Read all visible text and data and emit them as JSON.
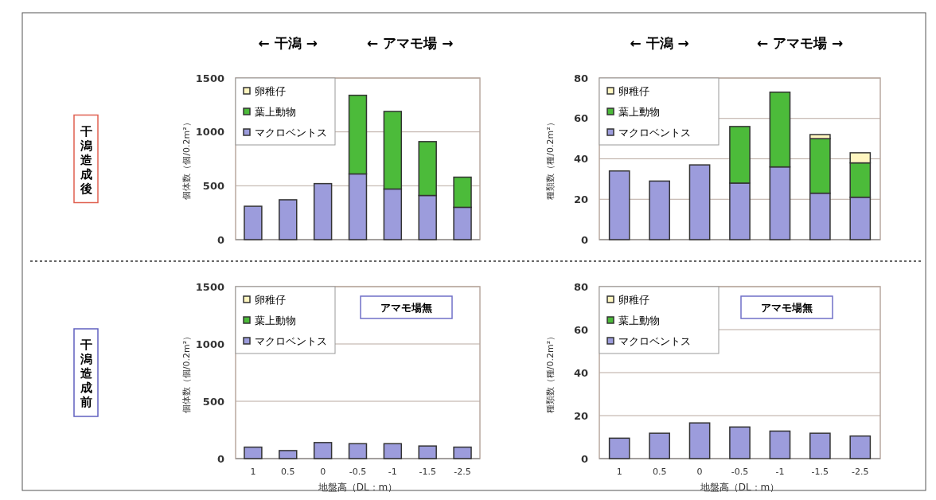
{
  "chart_data": [
    {
      "type": "bar",
      "stacked": true,
      "ylabel": "個体数（個/0.2m²）",
      "categories": [
        "1",
        "0.5",
        "0",
        "-0.5",
        "-1",
        "-1.5",
        "-2.5"
      ],
      "ylim": [
        0,
        1500
      ],
      "yticks": [
        0,
        500,
        1000,
        1500
      ],
      "grid": "y",
      "legend": "top left",
      "tick_labels": "y",
      "annotations": [
        "← 干潟 →",
        "← アマモ場 →",
        "干潟造成後"
      ],
      "series": [
        {
          "name": "マクロベントス",
          "color": "#9c9cdc",
          "values": [
            310,
            370,
            520,
            610,
            470,
            410,
            300
          ]
        },
        {
          "name": "葉上動物",
          "color": "#4cbb3a",
          "values": [
            0,
            0,
            0,
            730,
            720,
            500,
            280
          ]
        },
        {
          "name": "卵稚仔",
          "color": "#fff6c0",
          "values": [
            0,
            0,
            0,
            0,
            0,
            0,
            0
          ]
        }
      ]
    },
    {
      "type": "bar",
      "stacked": true,
      "ylabel": "種類数（種/0.2m²）",
      "categories": [
        "1",
        "0.5",
        "0",
        "-0.5",
        "-1",
        "-1.5",
        "-2.5"
      ],
      "ylim": [
        0,
        80
      ],
      "yticks": [
        0,
        20,
        40,
        60,
        80
      ],
      "grid": "y",
      "legend": "top left",
      "tick_labels": "y",
      "annotations": [
        "← 干潟 →",
        "← アマモ場 →"
      ],
      "series": [
        {
          "name": "マクロベントス",
          "color": "#9c9cdc",
          "values": [
            34,
            29,
            37,
            28,
            36,
            23,
            21
          ]
        },
        {
          "name": "葉上動物",
          "color": "#4cbb3a",
          "values": [
            0,
            0,
            0,
            28,
            37,
            27,
            17
          ]
        },
        {
          "name": "卵稚仔",
          "color": "#fff6c0",
          "values": [
            0,
            0,
            0,
            0,
            0,
            2,
            5
          ]
        }
      ]
    },
    {
      "type": "bar",
      "stacked": true,
      "ylabel": "個体数（個/0.2m²）",
      "xlabel": "地盤高（DL：m）",
      "categories": [
        "1",
        "0.5",
        "0",
        "-0.5",
        "-1",
        "-1.5",
        "-2.5"
      ],
      "ylim": [
        0,
        1500
      ],
      "yticks": [
        0,
        500,
        1000,
        1500
      ],
      "grid": "y",
      "legend": "top left",
      "annotations": [
        "アマモ場無",
        "干潟造成前"
      ],
      "series": [
        {
          "name": "マクロベントス",
          "color": "#9c9cdc",
          "values": [
            100,
            70,
            140,
            130,
            130,
            110,
            100
          ]
        },
        {
          "name": "葉上動物",
          "color": "#4cbb3a",
          "values": [
            0,
            0,
            0,
            0,
            0,
            0,
            0
          ]
        },
        {
          "name": "卵稚仔",
          "color": "#fff6c0",
          "values": [
            0,
            0,
            0,
            0,
            0,
            0,
            0
          ]
        }
      ]
    },
    {
      "type": "bar",
      "stacked": true,
      "ylabel": "種類数（種/0.2m²）",
      "xlabel": "地盤高（DL：m）",
      "categories": [
        "1",
        "0.5",
        "0",
        "-0.5",
        "-1",
        "-1.5",
        "-2.5"
      ],
      "ylim": [
        0,
        80
      ],
      "yticks": [
        0,
        20,
        40,
        60,
        80
      ],
      "grid": "y",
      "legend": "top left",
      "annotations": [
        "アマモ場無"
      ],
      "series": [
        {
          "name": "マクロベントス",
          "color": "#9c9cdc",
          "values": [
            9.5,
            11.8,
            16.6,
            14.7,
            12.8,
            11.8,
            10.5
          ]
        },
        {
          "name": "葉上動物",
          "color": "#4cbb3a",
          "values": [
            0,
            0,
            0,
            0,
            0,
            0,
            0
          ]
        },
        {
          "name": "卵稚仔",
          "color": "#fff6c0",
          "values": [
            0,
            0,
            0,
            0,
            0,
            0,
            0
          ]
        }
      ]
    }
  ]
}
